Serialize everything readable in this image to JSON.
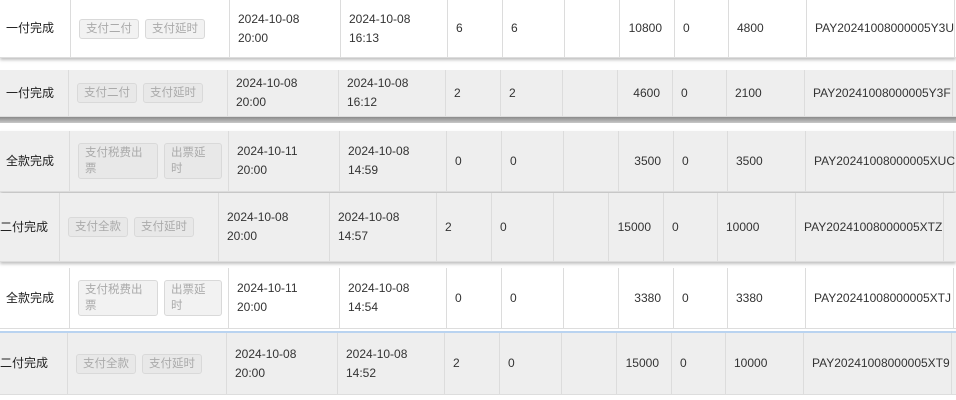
{
  "rows": [
    {
      "status": "一付完成",
      "actions": [
        "支付二付",
        "支付延时"
      ],
      "deadline": "2024-10-08 20:00",
      "time": "2024-10-08 16:13",
      "qty_a": "6",
      "qty_b": "6",
      "blank": "",
      "amount": "10800",
      "zero": "0",
      "paid": "4800",
      "pay_id": "PAY20241008000005Y3U"
    },
    {
      "status": "一付完成",
      "actions": [
        "支付二付",
        "支付延时"
      ],
      "deadline": "2024-10-08 20:00",
      "time": "2024-10-08 16:12",
      "qty_a": "2",
      "qty_b": "2",
      "blank": "",
      "amount": "4600",
      "zero": "0",
      "paid": "2100",
      "pay_id": "PAY20241008000005Y3F"
    },
    {
      "status": "全款完成",
      "actions": [
        "支付税费出票",
        "出票延时"
      ],
      "deadline": "2024-10-11 20:00",
      "time": "2024-10-08 14:59",
      "qty_a": "0",
      "qty_b": "0",
      "blank": "",
      "amount": "3500",
      "zero": "0",
      "paid": "3500",
      "pay_id": "PAY20241008000005XUC"
    },
    {
      "status": "二付完成",
      "actions": [
        "支付全款",
        "支付延时"
      ],
      "deadline": "2024-10-08 20:00",
      "time": "2024-10-08 14:57",
      "qty_a": "2",
      "qty_b": "0",
      "blank": "",
      "amount": "15000",
      "zero": "0",
      "paid": "10000",
      "pay_id": "PAY20241008000005XTZ"
    },
    {
      "status": "全款完成",
      "actions": [
        "支付税费出票",
        "出票延时"
      ],
      "deadline": "2024-10-11 20:00",
      "time": "2024-10-08 14:54",
      "qty_a": "0",
      "qty_b": "0",
      "blank": "",
      "amount": "3380",
      "zero": "0",
      "paid": "3380",
      "pay_id": "PAY20241008000005XTJ"
    },
    {
      "status": "二付完成",
      "actions": [
        "支付全款",
        "支付延时"
      ],
      "deadline": "2024-10-08 20:00",
      "time": "2024-10-08 14:52",
      "qty_a": "2",
      "qty_b": "0",
      "blank": "",
      "amount": "15000",
      "zero": "0",
      "paid": "10000",
      "pay_id": "PAY20241008000005XT9"
    }
  ],
  "colors": {
    "row_white": "#ffffff",
    "row_grey": "#eeeeee",
    "button_text": "#aaaaaa",
    "selected_border": "#b9d3f0"
  }
}
